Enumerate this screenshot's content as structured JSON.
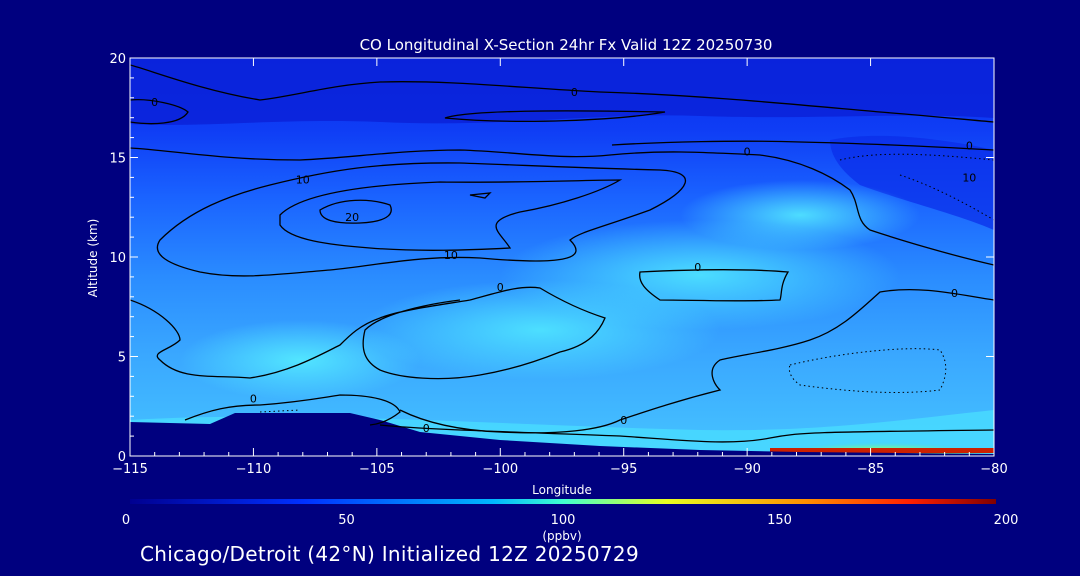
{
  "chart_data": {
    "type": "contour",
    "title": "CO Longitudinal X-Section 24hr  Fx Valid 12Z 20250730",
    "xlabel": "Longitude",
    "ylabel": "Altitude (km)",
    "x_ticks": [
      -115,
      -110,
      -105,
      -100,
      -95,
      -90,
      -85,
      -80
    ],
    "y_ticks": [
      0,
      5,
      10,
      15,
      20
    ],
    "xlim": [
      -115,
      -80
    ],
    "ylim": [
      0,
      20
    ],
    "colorbar": {
      "ticks": [
        0,
        50,
        100,
        150,
        200
      ],
      "unit": "(ppbv)",
      "range": [
        0,
        200
      ]
    },
    "contour_labels": [
      {
        "text": "0",
        "lon": -114,
        "alt": 17.8
      },
      {
        "text": "0",
        "lon": -97,
        "alt": 18.3
      },
      {
        "text": "0",
        "lon": -90,
        "alt": 15.3
      },
      {
        "text": "0",
        "lon": -81,
        "alt": 15.6
      },
      {
        "text": "10",
        "lon": -81,
        "alt": 14.0
      },
      {
        "text": "10",
        "lon": -108,
        "alt": 13.9
      },
      {
        "text": "20",
        "lon": -106,
        "alt": 12.0
      },
      {
        "text": "10",
        "lon": -102,
        "alt": 10.1
      },
      {
        "text": "0",
        "lon": -92,
        "alt": 9.5
      },
      {
        "text": "0",
        "lon": -100,
        "alt": 8.5
      },
      {
        "text": "0",
        "lon": -81.6,
        "alt": 8.2
      },
      {
        "text": "0",
        "lon": -110,
        "alt": 2.9
      },
      {
        "text": "0",
        "lon": -103,
        "alt": 1.4
      },
      {
        "text": "0",
        "lon": -95,
        "alt": 1.8
      }
    ],
    "surface_high_co": {
      "lon_range": [
        -89,
        -80
      ],
      "peak_ppbv": 190
    }
  },
  "footer": {
    "text": "Chicago/Detroit (42°N) Initialized 12Z 20250729"
  }
}
